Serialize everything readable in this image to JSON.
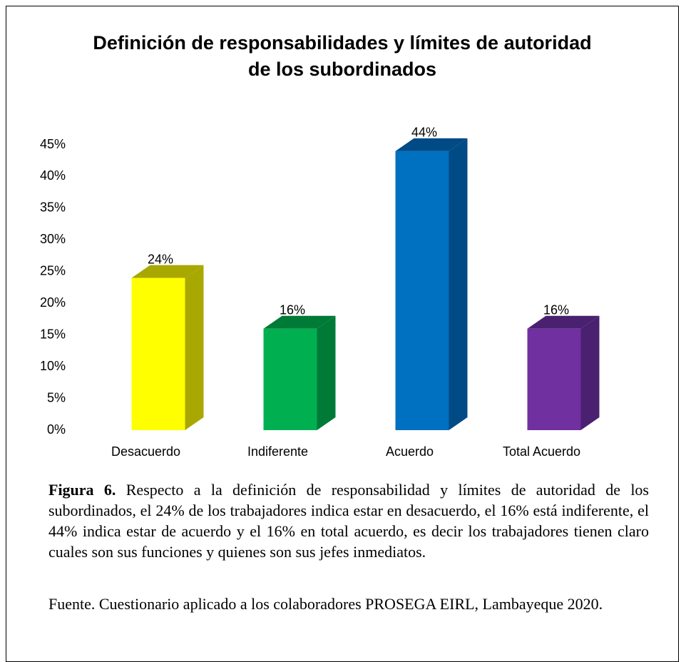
{
  "chart_data": {
    "type": "bar3d",
    "title": "Definición de responsabilidades y límites de autoridad de los subordinados",
    "categories": [
      "Desacuerdo",
      "Indiferente",
      "Acuerdo",
      "Total Acuerdo"
    ],
    "values": [
      24,
      16,
      44,
      16
    ],
    "value_labels": [
      "24%",
      "16%",
      "44%",
      "16%"
    ],
    "colors": [
      "#ffff00",
      "#00b050",
      "#0070c0",
      "#7030a0"
    ],
    "side_colors": [
      "#a8a800",
      "#007a37",
      "#004a85",
      "#4a2070"
    ],
    "ylim": [
      0,
      45
    ],
    "yticks": [
      {
        "value": 0,
        "label": "0%"
      },
      {
        "value": 5,
        "label": "5%"
      },
      {
        "value": 10,
        "label": "10%"
      },
      {
        "value": 15,
        "label": "15%"
      },
      {
        "value": 20,
        "label": "20%"
      },
      {
        "value": 25,
        "label": "25%"
      },
      {
        "value": 30,
        "label": "30%"
      },
      {
        "value": 35,
        "label": "35%"
      },
      {
        "value": 40,
        "label": "40%"
      },
      {
        "value": 45,
        "label": "45%"
      }
    ],
    "grid": false
  },
  "caption": {
    "label": "Figura 6.",
    "text": "Respecto a la definición de responsabilidad y límites de autoridad de los subordinados, el 24% de los trabajadores indica estar en desacuerdo, el 16% está indiferente, el 44% indica estar de acuerdo y el 16% en total acuerdo, es decir los trabajadores tienen claro cuales son sus funciones y quienes son sus jefes inmediatos."
  },
  "source": "Fuente. Cuestionario aplicado a los colaboradores PROSEGA EIRL, Lambayeque 2020."
}
